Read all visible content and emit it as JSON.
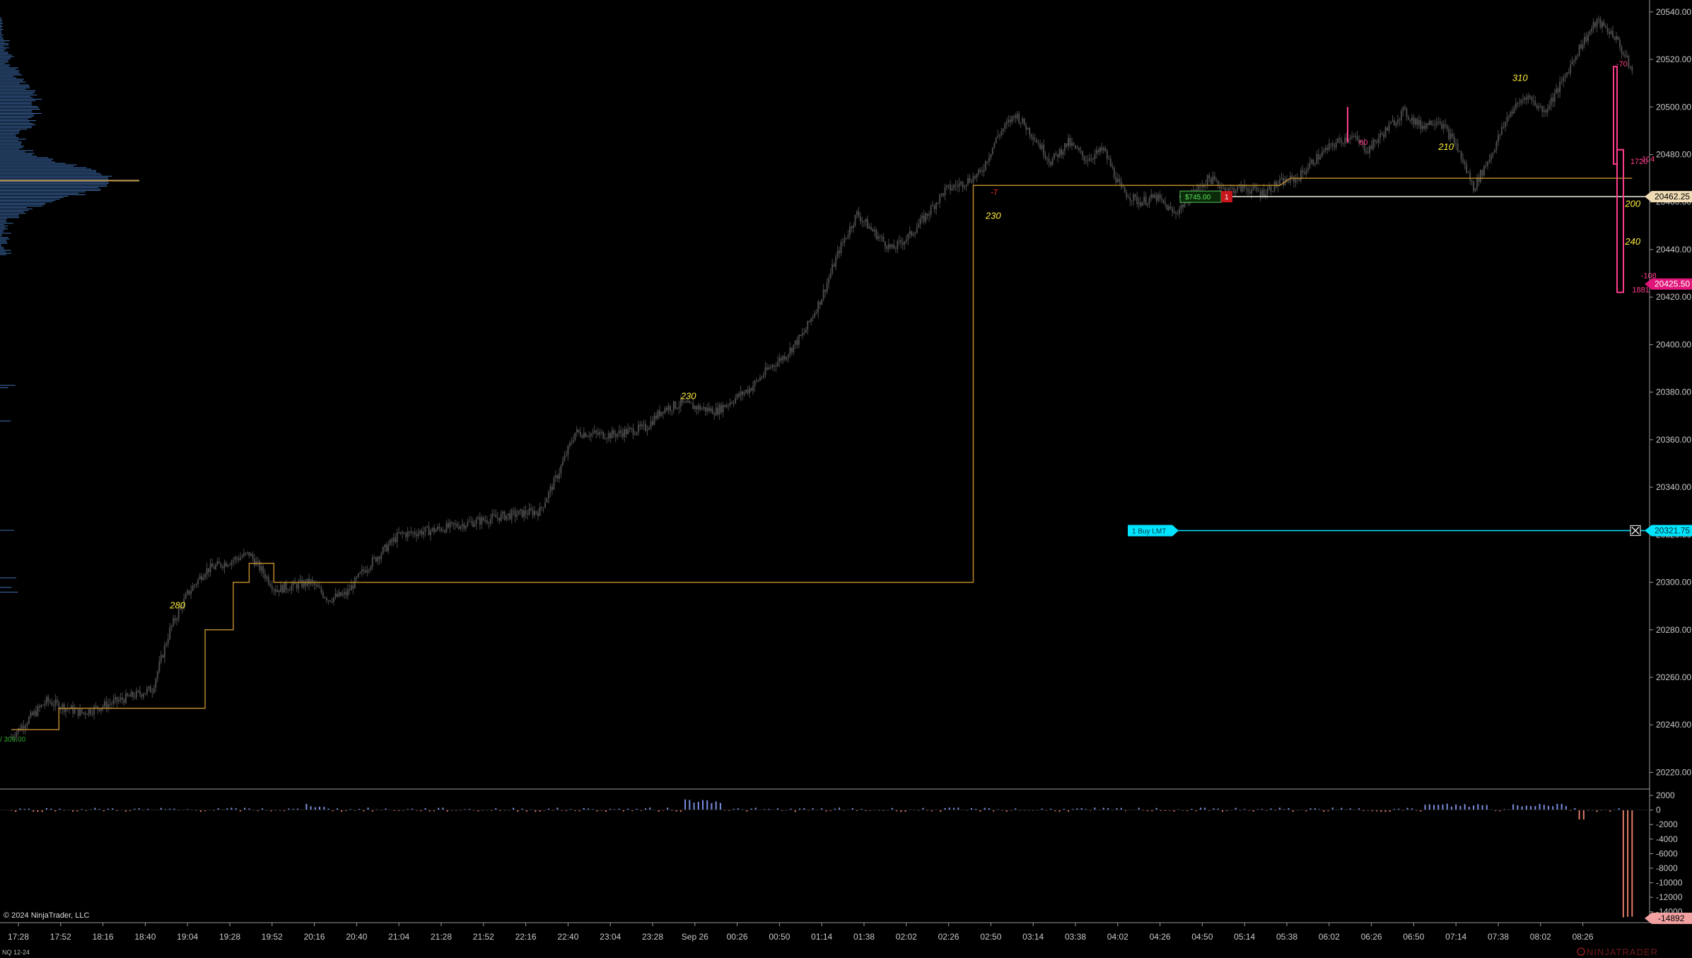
{
  "instrument": "NQ 12-24",
  "copyright": "© 2024 NinjaTrader, LLC",
  "brand": "NINJATRADER",
  "colors": {
    "background": "#000000",
    "candle": "#4a4a4a",
    "step_line": "#b8862b",
    "position_line": "#f0ece0",
    "order_line": "#00e5ff",
    "volume_profile": "#3f6fb0",
    "delta_pos": "#7b8fe0",
    "delta_neg": "#e07b6b",
    "annotation": "#ffeb3b",
    "pink": "#ff3c8a"
  },
  "chart_data": [
    {
      "type": "candlestick",
      "title": "",
      "y_ticks": [
        "20540.00",
        "20520.00",
        "20500.00",
        "20480.00",
        "20460.00",
        "20440.00",
        "20420.00",
        "20400.00",
        "20380.00",
        "20360.00",
        "20340.00",
        "20320.00",
        "20300.00",
        "20280.00",
        "20260.00",
        "20240.00",
        "20220.00"
      ],
      "ylim": [
        20213,
        20545
      ],
      "x_ticks": [
        "17:28",
        "17:52",
        "18:16",
        "18:40",
        "19:04",
        "19:28",
        "19:52",
        "20:16",
        "20:40",
        "21:04",
        "21:28",
        "21:52",
        "22:16",
        "22:40",
        "23:04",
        "23:28",
        "Sep 26",
        "00:26",
        "00:50",
        "01:14",
        "01:38",
        "02:02",
        "02:26",
        "02:50",
        "03:14",
        "03:38",
        "04:02",
        "04:26",
        "04:50",
        "05:14",
        "05:38",
        "06:02",
        "06:26",
        "06:50",
        "07:14",
        "07:38",
        "08:02",
        "08:26"
      ],
      "price_path": [
        {
          "t": 0,
          "p": 20235
        },
        {
          "t": 2,
          "p": 20250
        },
        {
          "t": 4,
          "p": 20245
        },
        {
          "t": 6,
          "p": 20250
        },
        {
          "t": 8,
          "p": 20255
        },
        {
          "t": 9,
          "p": 20280
        },
        {
          "t": 10,
          "p": 20295
        },
        {
          "t": 11,
          "p": 20305
        },
        {
          "t": 13.5,
          "p": 20312
        },
        {
          "t": 15,
          "p": 20297
        },
        {
          "t": 17,
          "p": 20300
        },
        {
          "t": 18,
          "p": 20293
        },
        {
          "t": 19,
          "p": 20295
        },
        {
          "t": 20,
          "p": 20305
        },
        {
          "t": 22,
          "p": 20320
        },
        {
          "t": 24,
          "p": 20322
        },
        {
          "t": 26,
          "p": 20325
        },
        {
          "t": 28,
          "p": 20328
        },
        {
          "t": 30,
          "p": 20330
        },
        {
          "t": 31,
          "p": 20345
        },
        {
          "t": 32,
          "p": 20363
        },
        {
          "t": 34,
          "p": 20362
        },
        {
          "t": 36,
          "p": 20365
        },
        {
          "t": 37,
          "p": 20373
        },
        {
          "t": 38,
          "p": 20375
        },
        {
          "t": 40,
          "p": 20372
        },
        {
          "t": 42,
          "p": 20382
        },
        {
          "t": 43,
          "p": 20390
        },
        {
          "t": 44,
          "p": 20396
        },
        {
          "t": 45,
          "p": 20405
        },
        {
          "t": 46,
          "p": 20420
        },
        {
          "t": 47,
          "p": 20440
        },
        {
          "t": 48,
          "p": 20455
        },
        {
          "t": 49,
          "p": 20447
        },
        {
          "t": 50,
          "p": 20440
        },
        {
          "t": 51,
          "p": 20446
        },
        {
          "t": 52,
          "p": 20455
        },
        {
          "t": 53,
          "p": 20465
        },
        {
          "t": 54,
          "p": 20468
        },
        {
          "t": 55,
          "p": 20472
        },
        {
          "t": 56,
          "p": 20488
        },
        {
          "t": 57,
          "p": 20497
        },
        {
          "t": 58,
          "p": 20488
        },
        {
          "t": 59,
          "p": 20477
        },
        {
          "t": 60,
          "p": 20485
        },
        {
          "t": 61,
          "p": 20478
        },
        {
          "t": 62,
          "p": 20482
        },
        {
          "t": 63,
          "p": 20465
        },
        {
          "t": 64,
          "p": 20460
        },
        {
          "t": 65,
          "p": 20462
        },
        {
          "t": 66,
          "p": 20455
        },
        {
          "t": 67,
          "p": 20463
        },
        {
          "t": 68,
          "p": 20470
        },
        {
          "t": 69,
          "p": 20465
        },
        {
          "t": 70,
          "p": 20466
        },
        {
          "t": 71,
          "p": 20464
        },
        {
          "t": 72,
          "p": 20468
        },
        {
          "t": 73,
          "p": 20470
        },
        {
          "t": 74,
          "p": 20478
        },
        {
          "t": 75,
          "p": 20484
        },
        {
          "t": 76,
          "p": 20488
        },
        {
          "t": 77,
          "p": 20482
        },
        {
          "t": 78,
          "p": 20490
        },
        {
          "t": 79,
          "p": 20498
        },
        {
          "t": 80,
          "p": 20492
        },
        {
          "t": 81,
          "p": 20495
        },
        {
          "t": 82,
          "p": 20484
        },
        {
          "t": 83,
          "p": 20466
        },
        {
          "t": 84,
          "p": 20480
        },
        {
          "t": 85,
          "p": 20497
        },
        {
          "t": 86,
          "p": 20505
        },
        {
          "t": 87,
          "p": 20498
        },
        {
          "t": 88,
          "p": 20510
        },
        {
          "t": 89,
          "p": 20525
        },
        {
          "t": 90,
          "p": 20536
        },
        {
          "t": 91,
          "p": 20530
        },
        {
          "t": 92,
          "p": 20515
        }
      ],
      "step_line": [
        {
          "t": 0,
          "p": 20238
        },
        {
          "t": 2.7,
          "p": 20238
        },
        {
          "t": 2.7,
          "p": 20247
        },
        {
          "t": 11,
          "p": 20247
        },
        {
          "t": 11,
          "p": 20280
        },
        {
          "t": 12.6,
          "p": 20280
        },
        {
          "t": 12.6,
          "p": 20300
        },
        {
          "t": 13.5,
          "p": 20300
        },
        {
          "t": 13.5,
          "p": 20308
        },
        {
          "t": 14.9,
          "p": 20308
        },
        {
          "t": 14.9,
          "p": 20300
        },
        {
          "t": 54.6,
          "p": 20300
        },
        {
          "t": 54.6,
          "p": 20467
        },
        {
          "t": 72.0,
          "p": 20467
        },
        {
          "t": 72.6,
          "p": 20470
        },
        {
          "t": 92,
          "p": 20470
        }
      ],
      "annotations": [
        {
          "text": "280",
          "t": 9.0,
          "p": 20289
        },
        {
          "text": "230",
          "t": 38.0,
          "p": 20377
        },
        {
          "text": "230",
          "t": 55.3,
          "p": 20453
        },
        {
          "text": "-7",
          "t": 55.6,
          "p": 20463
        },
        {
          "text": "310",
          "t": 85.2,
          "p": 20511
        },
        {
          "text": "210",
          "t": 81.0,
          "p": 20482
        },
        {
          "text": "200",
          "t": 91.6,
          "p": 20458
        },
        {
          "text": "240",
          "t": 91.6,
          "p": 20442
        },
        {
          "text": "-108",
          "t": 92.5,
          "p": 20428
        },
        {
          "text": "1881",
          "t": 92.0,
          "p": 20422
        },
        {
          "text": "60",
          "t": 76.5,
          "p": 20484
        },
        {
          "text": "-70",
          "t": 91.1,
          "p": 20517
        },
        {
          "text": "-104",
          "t": 92.4,
          "p": 20477
        },
        {
          "text": "1720",
          "t": 91.9,
          "p": 20476
        }
      ],
      "position_line": {
        "price": 20462.25,
        "label": "20462.25",
        "pnl": "$745.00",
        "qty": "1"
      },
      "order_line": {
        "price": 20321.75,
        "label": "20321.75",
        "order": "1  Buy LMT"
      },
      "current_price": {
        "price": 20425.5,
        "label": "20425.50"
      },
      "left_label": "/ 309.00"
    },
    {
      "type": "bar",
      "title": "",
      "y_ticks": [
        "2000",
        "0",
        "-2000",
        "-4000",
        "-6000",
        "-8000",
        "-10000",
        "-12000",
        "-14000"
      ],
      "ylim": [
        -15000,
        2300
      ],
      "last_value": "-14892"
    }
  ]
}
